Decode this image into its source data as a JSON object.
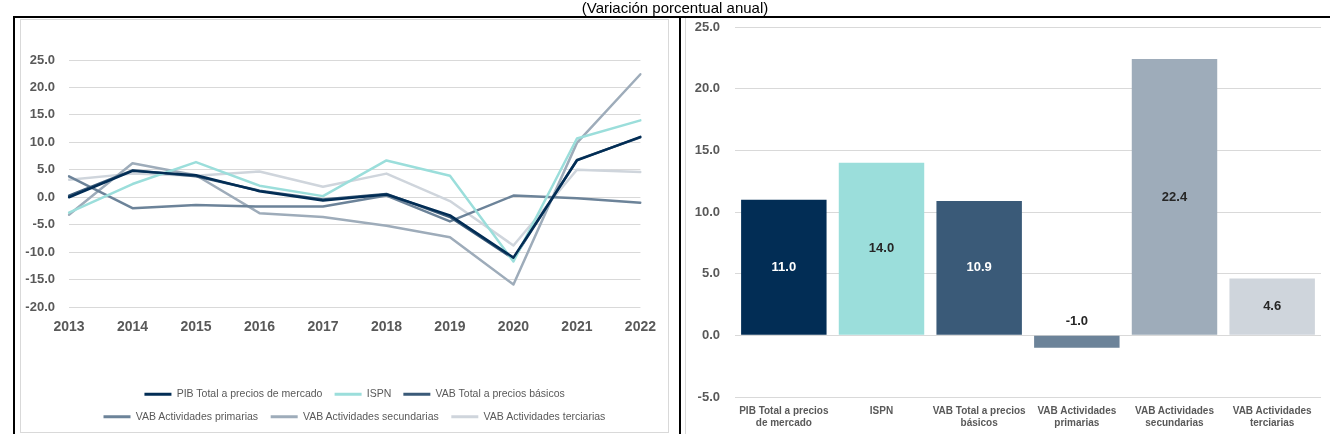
{
  "chart_data": [
    {
      "type": "line",
      "title": "(Variación porcentual anual)",
      "categories": [
        "2013",
        "2014",
        "2015",
        "2016",
        "2017",
        "2018",
        "2019",
        "2020",
        "2021",
        "2022"
      ],
      "series": [
        {
          "name": "PIB Total a precios de mercado",
          "color": "#022d55",
          "values": [
            0.0,
            4.8,
            4.0,
            1.1,
            -0.6,
            0.5,
            -3.3,
            -11.0,
            6.7,
            11.0
          ]
        },
        {
          "name": "ISPN",
          "color": "#9bdedb",
          "values": [
            -2.8,
            2.4,
            6.4,
            2.1,
            0.2,
            6.7,
            3.9,
            -11.7,
            10.7,
            14.0
          ]
        },
        {
          "name": "VAB Total a precios básicos",
          "color": "#3a5a78",
          "values": [
            0.3,
            4.9,
            3.8,
            1.2,
            -0.4,
            0.6,
            -3.6,
            -11.2,
            6.8,
            10.9
          ]
        },
        {
          "name": "VAB Actividades primarias",
          "color": "#6c8399",
          "values": [
            3.8,
            -2.0,
            -1.4,
            -1.7,
            -1.7,
            0.3,
            -4.4,
            0.3,
            -0.2,
            -1.0
          ]
        },
        {
          "name": "VAB Actividades secundarias",
          "color": "#9eacba",
          "values": [
            -3.2,
            6.2,
            4.0,
            -2.9,
            -3.6,
            -5.2,
            -7.3,
            -15.9,
            9.9,
            22.4
          ]
        },
        {
          "name": "VAB Actividades terciarias",
          "color": "#cfd5dc",
          "values": [
            3.2,
            4.3,
            3.9,
            4.7,
            1.9,
            4.3,
            -0.7,
            -8.8,
            5.0,
            4.6
          ]
        }
      ],
      "ylim": [
        -20,
        25
      ],
      "yticks": [
        {
          "value": -20,
          "label": "-20.0"
        },
        {
          "value": -15,
          "label": "-15.0"
        },
        {
          "value": -10,
          "label": "-10.0"
        },
        {
          "value": -5,
          "label": "-5.0"
        },
        {
          "value": 0,
          "label": "0.0"
        },
        {
          "value": 5,
          "label": "5.0"
        },
        {
          "value": 10,
          "label": "10.0"
        },
        {
          "value": 15,
          "label": "15.0"
        },
        {
          "value": 20,
          "label": "20.0"
        },
        {
          "value": 25,
          "label": "25.0"
        }
      ],
      "grid": "y",
      "legend": "bottom"
    },
    {
      "type": "bar",
      "categories": [
        "PIB Total a precios de mercado",
        "ISPN",
        "VAB Total a precios básicos",
        "VAB Actividades primarias",
        "VAB Actividades secundarias",
        "VAB Actividades terciarias"
      ],
      "values": [
        11.0,
        14.0,
        10.9,
        -1.0,
        22.4,
        4.6
      ],
      "colors": [
        "#022d55",
        "#9bdedb",
        "#3a5a78",
        "#6c8399",
        "#9eacba",
        "#cfd5dc"
      ],
      "value_labels": [
        "11.0",
        "14.0",
        "10.9",
        "-1.0",
        "22.4",
        "4.6"
      ],
      "ylim": [
        -5,
        25
      ],
      "yticks": [
        {
          "value": -5,
          "label": "-5.0"
        },
        {
          "value": 0,
          "label": "0.0"
        },
        {
          "value": 5,
          "label": "5.0"
        },
        {
          "value": 10,
          "label": "10.0"
        },
        {
          "value": 15,
          "label": "15.0"
        },
        {
          "value": 20,
          "label": "20.0"
        },
        {
          "value": 25,
          "label": "25.0"
        }
      ],
      "grid": "y"
    }
  ]
}
